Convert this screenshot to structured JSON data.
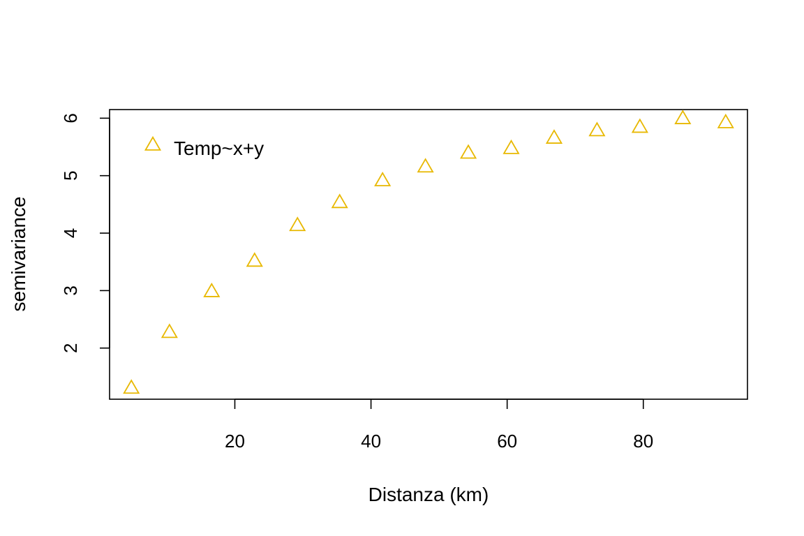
{
  "chart_data": {
    "type": "scatter",
    "title": "",
    "xlabel": "Distanza (km)",
    "ylabel": "semivariance",
    "xlim": [
      1.6,
      95.3
    ],
    "ylim": [
      1.11,
      6.15
    ],
    "xticks": [
      20,
      40,
      60,
      80
    ],
    "yticks": [
      2,
      3,
      4,
      5,
      6
    ],
    "xtick_labels": [
      "20",
      "40",
      "60",
      "80"
    ],
    "ytick_labels": [
      "2",
      "3",
      "4",
      "5",
      "6"
    ],
    "grid": false,
    "legend_position": "top-left",
    "series": [
      {
        "name": "Temp~x+y",
        "marker": "triangle-open",
        "color": "#E8B800",
        "x": [
          4.8,
          10.4,
          16.6,
          22.9,
          29.2,
          35.4,
          41.7,
          48.0,
          54.3,
          60.6,
          66.9,
          73.2,
          79.5,
          85.8,
          92.1
        ],
        "y": [
          1.3,
          2.27,
          2.98,
          3.51,
          4.13,
          4.53,
          4.91,
          5.15,
          5.39,
          5.47,
          5.65,
          5.78,
          5.84,
          5.99,
          5.92
        ]
      }
    ]
  }
}
